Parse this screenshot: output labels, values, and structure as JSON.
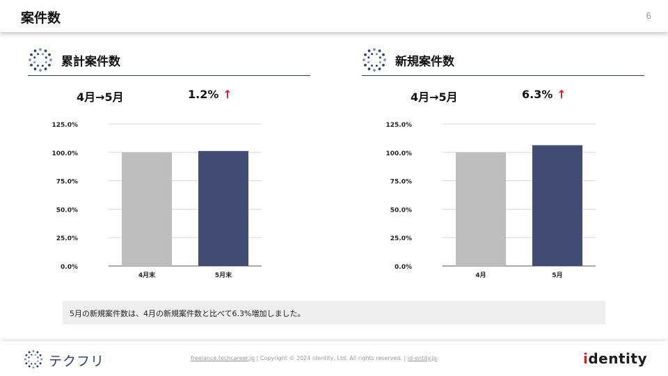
{
  "header": {
    "title": "案件数",
    "page_number": "6"
  },
  "sections": [
    {
      "title": "累計案件数",
      "icon": "dotted-circle-icon",
      "period_label": "4月→5月",
      "rate_label": "1.2%",
      "arrow": "↑"
    },
    {
      "title": "新規案件数",
      "icon": "dotted-circle-icon",
      "period_label": "4月→5月",
      "rate_label": "6.3%",
      "arrow": "↑"
    }
  ],
  "chart_data": [
    {
      "type": "bar",
      "categories": [
        "4月末",
        "5月末"
      ],
      "values": [
        100.0,
        101.2
      ],
      "yticks": [
        "0.0%",
        "25.0%",
        "50.0%",
        "75.0%",
        "100.0%",
        "125.0%"
      ],
      "ylim": [
        0,
        125
      ],
      "colors": [
        "#bdbdbd",
        "#434d74"
      ],
      "grid": true
    },
    {
      "type": "bar",
      "categories": [
        "4月",
        "5月"
      ],
      "values": [
        100.0,
        106.3
      ],
      "yticks": [
        "0.0%",
        "25.0%",
        "50.0%",
        "75.0%",
        "100.0%",
        "125.0%"
      ],
      "ylim": [
        0,
        125
      ],
      "colors": [
        "#bdbdbd",
        "#434d74"
      ],
      "grid": true
    }
  ],
  "note": "5月の新規案件数は、4月の新規案件数と比べて6.3%増加しました。",
  "footer": {
    "logo_text": "テクフリ",
    "site_link": "freelance.techcareer.jp",
    "copyright": "Copyright © 2024 identity, Ltd. All rights reserved.",
    "company_link": "id-entity.jp",
    "separator": "|",
    "brand_i": "i",
    "brand_rest": "dentity"
  },
  "colors": {
    "accent_red": "#d0202a",
    "navy": "#434d74",
    "gray_bar": "#bdbdbd"
  }
}
